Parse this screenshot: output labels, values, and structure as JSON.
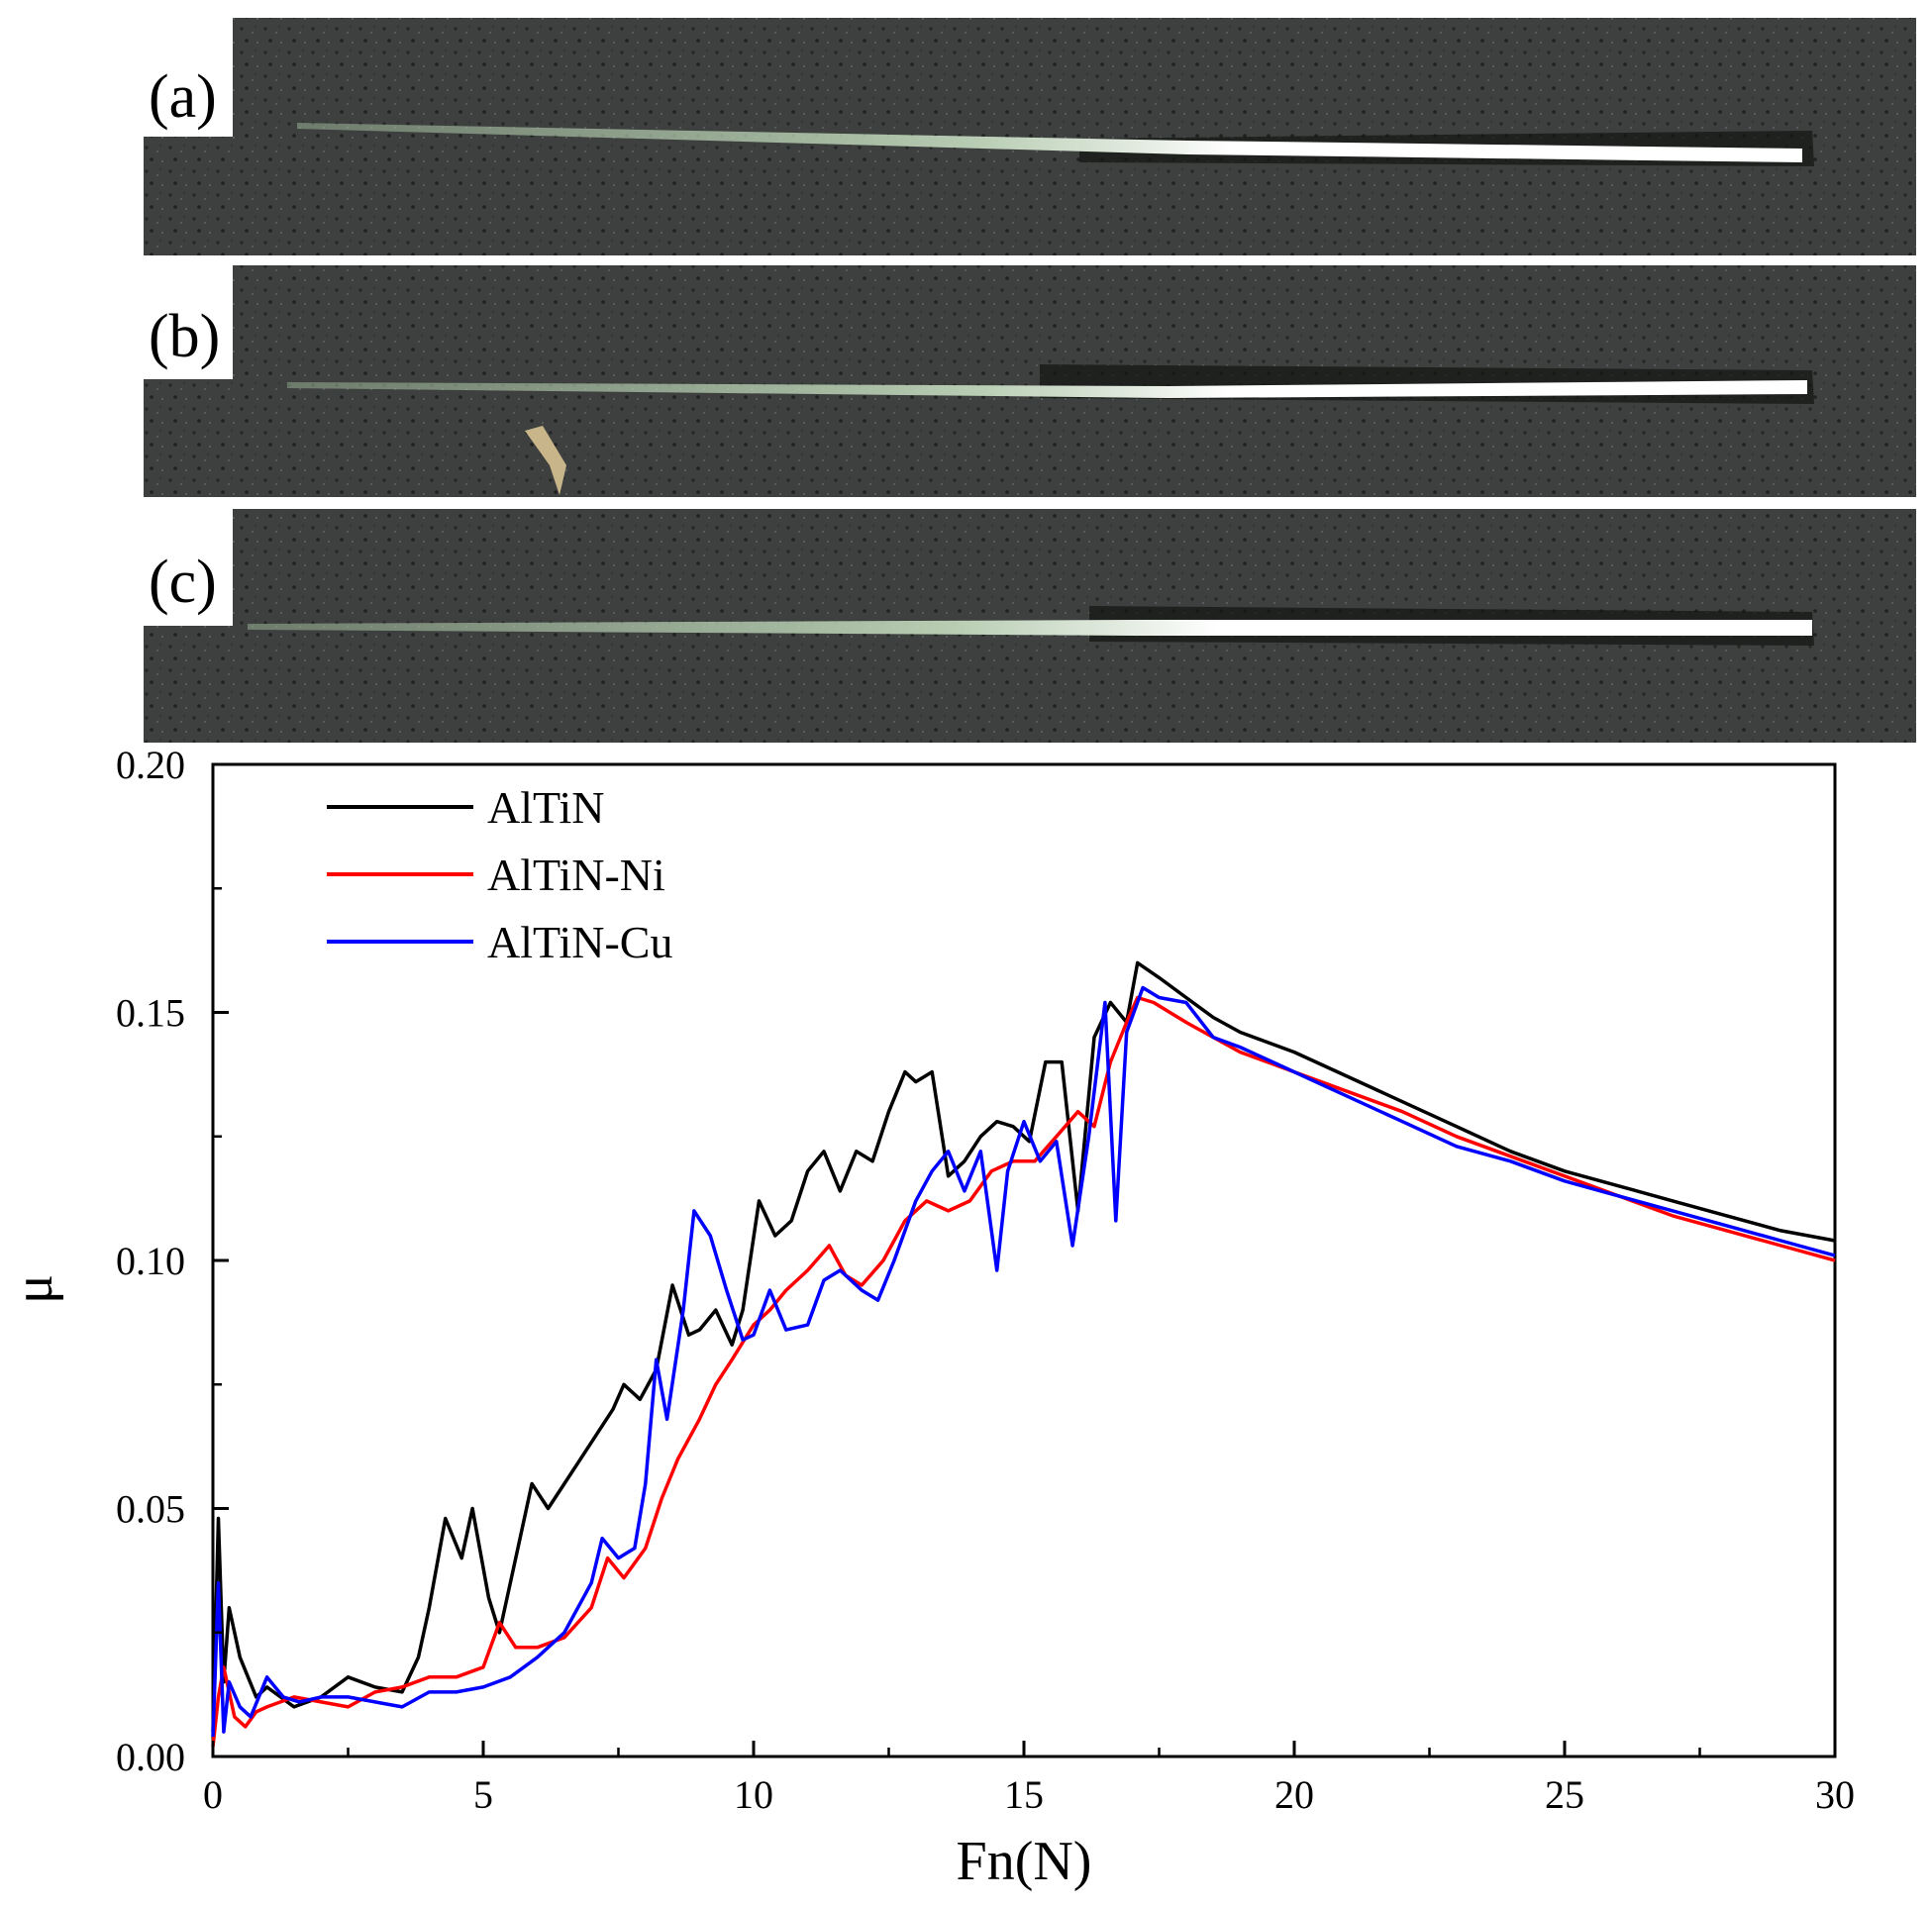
{
  "panels": [
    {
      "label": "(a)"
    },
    {
      "label": "(b)"
    },
    {
      "label": "(c)"
    }
  ],
  "colors": {
    "micrograph_bg": "#3a3d3c",
    "micrograph_speckle": "#1f2120",
    "scratch_glow": "#ffffff",
    "scratch_green": "#b9d6b4",
    "axis": "#000000"
  },
  "chart_data": {
    "type": "line",
    "title": "",
    "xlabel": "Fn(N)",
    "ylabel": "μ",
    "xlim": [
      0,
      30
    ],
    "ylim": [
      0,
      0.2
    ],
    "x_ticks": [
      "0",
      "5",
      "10",
      "15",
      "20",
      "25",
      "30"
    ],
    "y_ticks": [
      "0.00",
      "0.05",
      "0.10",
      "0.15",
      "0.20"
    ],
    "grid": false,
    "legend_position": "top-left",
    "series": [
      {
        "name": "AlTiN",
        "color": "#000000",
        "x": [
          0,
          0.1,
          0.2,
          0.3,
          0.5,
          0.8,
          1,
          1.5,
          2,
          2.5,
          3,
          3.5,
          3.8,
          4,
          4.3,
          4.6,
          4.8,
          5.1,
          5.3,
          5.6,
          5.9,
          6.2,
          6.5,
          6.8,
          7.1,
          7.4,
          7.6,
          7.9,
          8.2,
          8.5,
          8.8,
          9,
          9.3,
          9.6,
          9.8,
          10.1,
          10.4,
          10.7,
          11,
          11.3,
          11.6,
          11.9,
          12.2,
          12.5,
          12.8,
          13,
          13.3,
          13.6,
          13.9,
          14.2,
          14.5,
          14.8,
          15.1,
          15.4,
          15.7,
          16,
          16.3,
          16.6,
          16.9,
          17.1,
          17.5,
          18,
          18.5,
          19,
          20,
          21,
          22,
          23,
          24,
          25,
          26,
          27,
          28,
          29,
          30
        ],
        "values": [
          0.005,
          0.048,
          0.015,
          0.03,
          0.02,
          0.012,
          0.014,
          0.01,
          0.012,
          0.016,
          0.014,
          0.013,
          0.02,
          0.03,
          0.048,
          0.04,
          0.05,
          0.032,
          0.025,
          0.04,
          0.055,
          0.05,
          0.055,
          0.06,
          0.065,
          0.07,
          0.075,
          0.072,
          0.078,
          0.095,
          0.085,
          0.086,
          0.09,
          0.083,
          0.09,
          0.112,
          0.105,
          0.108,
          0.118,
          0.122,
          0.114,
          0.122,
          0.12,
          0.13,
          0.138,
          0.136,
          0.138,
          0.117,
          0.12,
          0.125,
          0.128,
          0.127,
          0.124,
          0.14,
          0.14,
          0.11,
          0.145,
          0.152,
          0.148,
          0.16,
          0.157,
          0.153,
          0.149,
          0.146,
          0.142,
          0.137,
          0.132,
          0.127,
          0.122,
          0.118,
          0.115,
          0.112,
          0.109,
          0.106,
          0.104
        ]
      },
      {
        "name": "AlTiN-Ni",
        "color": "#ff0000",
        "x": [
          0,
          0.1,
          0.2,
          0.4,
          0.6,
          0.8,
          1,
          1.5,
          2,
          2.5,
          3,
          3.5,
          4,
          4.5,
          5,
          5.3,
          5.6,
          6,
          6.5,
          7,
          7.3,
          7.6,
          8,
          8.3,
          8.6,
          9,
          9.3,
          9.6,
          10,
          10.3,
          10.6,
          11,
          11.4,
          11.7,
          12,
          12.4,
          12.8,
          13.2,
          13.6,
          14,
          14.4,
          14.8,
          15.2,
          15.6,
          16,
          16.3,
          16.6,
          16.9,
          17.1,
          17.4,
          18,
          18.5,
          19,
          20,
          21,
          22,
          23,
          24,
          25,
          26,
          27,
          28,
          29,
          30
        ],
        "values": [
          0.002,
          0.012,
          0.018,
          0.008,
          0.006,
          0.009,
          0.01,
          0.012,
          0.011,
          0.01,
          0.013,
          0.014,
          0.016,
          0.016,
          0.018,
          0.027,
          0.022,
          0.022,
          0.024,
          0.03,
          0.04,
          0.036,
          0.042,
          0.052,
          0.06,
          0.068,
          0.075,
          0.08,
          0.087,
          0.09,
          0.094,
          0.098,
          0.103,
          0.097,
          0.095,
          0.1,
          0.108,
          0.112,
          0.11,
          0.112,
          0.118,
          0.12,
          0.12,
          0.125,
          0.13,
          0.127,
          0.14,
          0.148,
          0.153,
          0.152,
          0.148,
          0.145,
          0.142,
          0.138,
          0.134,
          0.13,
          0.125,
          0.121,
          0.117,
          0.113,
          0.109,
          0.106,
          0.103,
          0.1
        ]
      },
      {
        "name": "AlTiN-Cu",
        "color": "#0000ff",
        "x": [
          0,
          0.1,
          0.2,
          0.3,
          0.5,
          0.7,
          1,
          1.3,
          1.6,
          2,
          2.5,
          3,
          3.5,
          4,
          4.5,
          5,
          5.5,
          6,
          6.5,
          7,
          7.2,
          7.5,
          7.8,
          8,
          8.2,
          8.4,
          8.7,
          8.9,
          9.2,
          9.5,
          9.8,
          10,
          10.3,
          10.6,
          11,
          11.3,
          11.6,
          12,
          12.3,
          12.6,
          13,
          13.3,
          13.6,
          13.9,
          14.2,
          14.5,
          14.7,
          15,
          15.3,
          15.6,
          15.9,
          16.2,
          16.5,
          16.7,
          16.9,
          17.2,
          17.5,
          18,
          18.5,
          19,
          20,
          21,
          22,
          23,
          24,
          25,
          26,
          27,
          28,
          29,
          30
        ],
        "values": [
          0.004,
          0.035,
          0.005,
          0.015,
          0.01,
          0.008,
          0.016,
          0.012,
          0.011,
          0.012,
          0.012,
          0.011,
          0.01,
          0.013,
          0.013,
          0.014,
          0.016,
          0.02,
          0.025,
          0.035,
          0.044,
          0.04,
          0.042,
          0.055,
          0.08,
          0.068,
          0.09,
          0.11,
          0.105,
          0.094,
          0.084,
          0.085,
          0.094,
          0.086,
          0.087,
          0.096,
          0.098,
          0.094,
          0.092,
          0.1,
          0.112,
          0.118,
          0.122,
          0.114,
          0.122,
          0.098,
          0.118,
          0.128,
          0.12,
          0.124,
          0.103,
          0.125,
          0.152,
          0.108,
          0.146,
          0.155,
          0.153,
          0.152,
          0.145,
          0.143,
          0.138,
          0.133,
          0.128,
          0.123,
          0.12,
          0.116,
          0.113,
          0.11,
          0.107,
          0.104,
          0.101
        ]
      }
    ]
  }
}
